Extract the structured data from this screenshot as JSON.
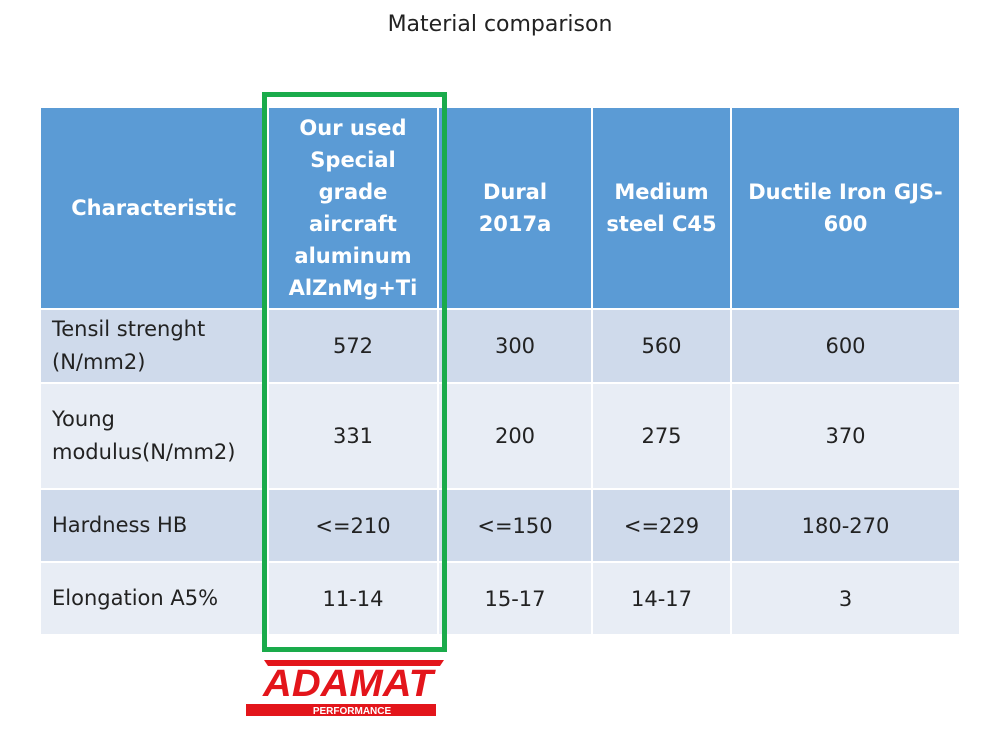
{
  "title": "Material comparison",
  "table": {
    "header": [
      "Characteristic",
      "Our used Special grade aircraft aluminum AlZnMg+Ti",
      "Dural 2017a",
      "Medium steel C45",
      "Ductile Iron GJS-600"
    ],
    "rows": [
      [
        "Tensil strenght (N/mm2)",
        "572",
        "300",
        "560",
        "600"
      ],
      [
        "Young modulus(N/mm2)",
        "331",
        "200",
        "275",
        "370"
      ],
      [
        "Hardness HB",
        "<=210",
        "<=150",
        "<=229",
        "180-270"
      ],
      [
        "Elongation A5%",
        "11-14",
        "15-17",
        "14-17",
        "3"
      ]
    ]
  },
  "logo": {
    "name": "ADAMAT",
    "tagline": "PERFORMANCE"
  }
}
